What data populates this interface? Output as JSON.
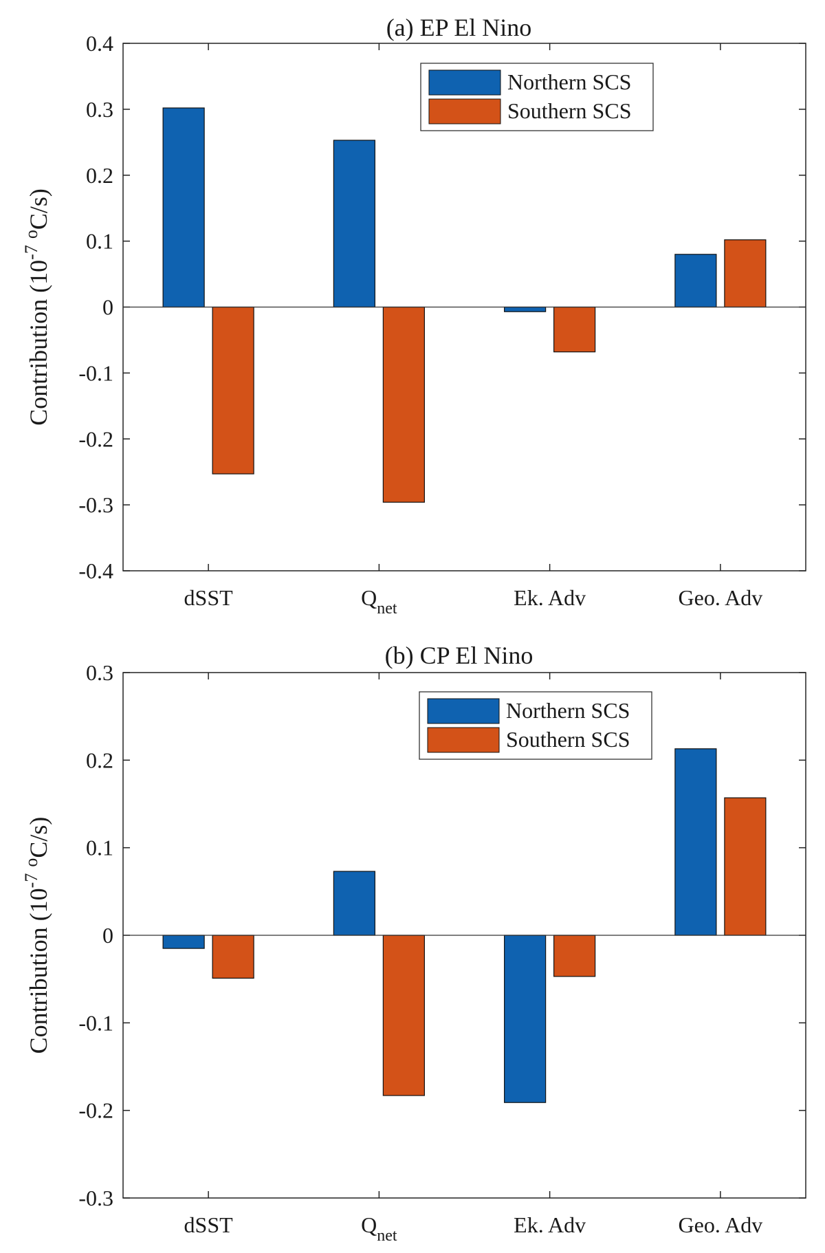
{
  "chart_data": [
    {
      "type": "bar",
      "title": "(a) EP El Nino",
      "ylabel": {
        "main": "Contribution (10",
        "sup1": "-7",
        "mid": " ",
        "sup2": "o",
        "end": "C/s)"
      },
      "xlabel": "",
      "ylim": [
        -0.4,
        0.4
      ],
      "yticks": [
        -0.4,
        -0.3,
        -0.2,
        -0.1,
        0,
        0.1,
        0.2,
        0.3,
        0.4
      ],
      "ytick_labels": [
        "-0.4",
        "-0.3",
        "-0.2",
        "-0.1",
        "0",
        "0.1",
        "0.2",
        "0.3",
        "0.4"
      ],
      "categories": [
        {
          "main": "dSST",
          "sub": ""
        },
        {
          "main": "Q",
          "sub": "net"
        },
        {
          "main": "Ek. Adv",
          "sub": ""
        },
        {
          "main": "Geo. Adv",
          "sub": ""
        }
      ],
      "series": [
        {
          "name": "Northern SCS",
          "color": "#0f62b0",
          "values": [
            0.302,
            0.253,
            -0.007,
            0.08
          ]
        },
        {
          "name": "Southern SCS",
          "color": "#d35218",
          "values": [
            -0.253,
            -0.296,
            -0.068,
            0.102
          ]
        }
      ],
      "legend_position": "top-right",
      "grid": false
    },
    {
      "type": "bar",
      "title": "(b) CP El Nino",
      "ylabel": {
        "main": "Contribution (10",
        "sup1": "-7",
        "mid": " ",
        "sup2": "o",
        "end": "C/s)"
      },
      "xlabel": "",
      "ylim": [
        -0.3,
        0.3
      ],
      "yticks": [
        -0.3,
        -0.2,
        -0.1,
        0,
        0.1,
        0.2,
        0.3
      ],
      "ytick_labels": [
        "-0.3",
        "-0.2",
        "-0.1",
        "0",
        "0.1",
        "0.2",
        "0.3"
      ],
      "categories": [
        {
          "main": "dSST",
          "sub": ""
        },
        {
          "main": "Q",
          "sub": "net"
        },
        {
          "main": "Ek. Adv",
          "sub": ""
        },
        {
          "main": "Geo. Adv",
          "sub": ""
        }
      ],
      "series": [
        {
          "name": "Northern SCS",
          "color": "#0f62b0",
          "values": [
            -0.015,
            0.073,
            -0.191,
            0.213
          ]
        },
        {
          "name": "Southern SCS",
          "color": "#d35218",
          "values": [
            -0.049,
            -0.183,
            -0.047,
            0.157
          ]
        }
      ],
      "legend_position": "top-right",
      "grid": false
    }
  ]
}
